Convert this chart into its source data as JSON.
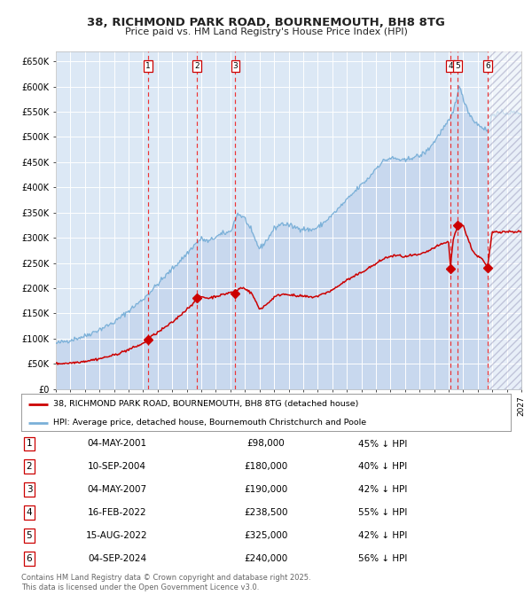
{
  "title_line1": "38, RICHMOND PARK ROAD, BOURNEMOUTH, BH8 8TG",
  "title_line2": "Price paid vs. HM Land Registry's House Price Index (HPI)",
  "ylim": [
    0,
    670000
  ],
  "xlim_start": 1995.0,
  "xlim_end": 2027.0,
  "hpi_fill_color": "#c8d8ee",
  "hpi_line_color": "#7ab0d8",
  "price_color": "#cc0000",
  "background_color": "#dce8f5",
  "grid_color": "#ffffff",
  "sale_dates_x": [
    2001.35,
    2004.7,
    2007.34,
    2022.12,
    2022.62,
    2024.67
  ],
  "sale_prices_y": [
    98000,
    180000,
    190000,
    238500,
    325000,
    240000
  ],
  "sale_labels": [
    "1",
    "2",
    "3",
    "4",
    "5",
    "6"
  ],
  "vline_color": "#ee3333",
  "legend_entries": [
    "38, RICHMOND PARK ROAD, BOURNEMOUTH, BH8 8TG (detached house)",
    "HPI: Average price, detached house, Bournemouth Christchurch and Poole"
  ],
  "table_data": [
    [
      "1",
      "04-MAY-2001",
      "£98,000",
      "45% ↓ HPI"
    ],
    [
      "2",
      "10-SEP-2004",
      "£180,000",
      "40% ↓ HPI"
    ],
    [
      "3",
      "04-MAY-2007",
      "£190,000",
      "42% ↓ HPI"
    ],
    [
      "4",
      "16-FEB-2022",
      "£238,500",
      "55% ↓ HPI"
    ],
    [
      "5",
      "15-AUG-2022",
      "£325,000",
      "42% ↓ HPI"
    ],
    [
      "6",
      "04-SEP-2024",
      "£240,000",
      "56% ↓ HPI"
    ]
  ],
  "footnote": "Contains HM Land Registry data © Crown copyright and database right 2025.\nThis data is licensed under the Open Government Licence v3.0.",
  "yticks": [
    0,
    50000,
    100000,
    150000,
    200000,
    250000,
    300000,
    350000,
    400000,
    450000,
    500000,
    550000,
    600000,
    650000
  ],
  "ytick_labels": [
    "£0",
    "£50K",
    "£100K",
    "£150K",
    "£200K",
    "£250K",
    "£300K",
    "£350K",
    "£400K",
    "£450K",
    "£500K",
    "£550K",
    "£600K",
    "£650K"
  ],
  "hatch_region_start": 2024.67,
  "hatch_region_end": 2027.0
}
